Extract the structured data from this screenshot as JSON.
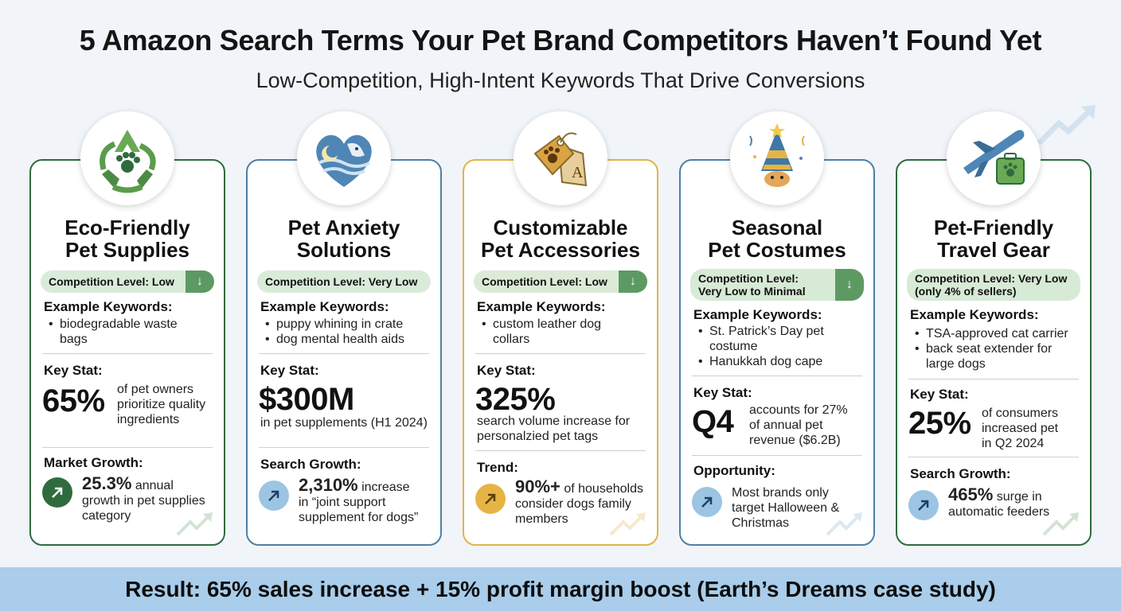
{
  "header": {
    "title": "5 Amazon Search Terms Your Pet Brand Competitors Haven’t Found Yet",
    "subtitle": "Low-Competition, High-Intent Keywords That Drive Conversions"
  },
  "colors": {
    "green": "#2f6b3e",
    "blue": "#4f7fa3",
    "gold": "#e0b44a",
    "result_bar": "#a9cdea"
  },
  "cards": [
    {
      "icon": "recycle-paw-icon",
      "title_1": "Eco-Friendly",
      "title_2": "Pet Supplies",
      "competition": "Competition Level: Low",
      "keywords_label": "Example Keywords:",
      "keywords": [
        "biodegradable waste",
        "bags"
      ],
      "stat_label": "Key Stat:",
      "stat_value": "65%",
      "stat_text": [
        "of pet owners",
        "prioritize quality",
        "ingredients"
      ],
      "growth_label": "Market Growth:",
      "growth_value": "25.3%",
      "growth_text_1": " annual",
      "growth_text_2": "growth in pet supplies",
      "growth_text_3": "category"
    },
    {
      "icon": "heart-dog-icon",
      "title_1": "Pet Anxiety",
      "title_2": "Solutions",
      "competition": "Competition Level: Very Low",
      "keywords_label": "Example Keywords:",
      "keywords": [
        "puppy whining in crate",
        "dog mental health aids"
      ],
      "stat_label": "Key Stat:",
      "stat_value": "$300M",
      "stat_text": [
        "in pet supplements (H1 2024)"
      ],
      "growth_label": "Search Growth:",
      "growth_value": "2,310%",
      "growth_text_1": " increase",
      "growth_text_2": "in “joint support",
      "growth_text_3": "supplement for dogs”"
    },
    {
      "icon": "paw-tag-icon",
      "title_1": "Customizable",
      "title_2": "Pet Accessories",
      "competition": "Competition Level: Low",
      "keywords_label": "Example Keywords:",
      "keywords": [
        "custom leather dog",
        "collars"
      ],
      "stat_label": "Key Stat:",
      "stat_value": "325%",
      "stat_text": [
        "search volume increase for",
        "personalzied pet tags"
      ],
      "growth_label": "Trend:",
      "growth_value": "90%+",
      "growth_text_1": " of households",
      "growth_text_2": "consider dogs family",
      "growth_text_3": "members"
    },
    {
      "icon": "party-hat-dog-icon",
      "title_1": "Seasonal",
      "title_2": "Pet Costumes",
      "competition_1": "Competition Level:",
      "competition_2": "Very Low to Minimal",
      "keywords_label": "Example Keywords:",
      "keywords": [
        "St. Patrick’s Day pet",
        "costume",
        "Hanukkah dog cape"
      ],
      "stat_label": "Key Stat:",
      "stat_value": "Q4",
      "stat_text": [
        "accounts for 27%",
        "of annual pet",
        "revenue ($6.2B)"
      ],
      "growth_label": "Opportunity:",
      "growth_text_1": "Most brands only",
      "growth_text_2": "target Halloween &",
      "growth_text_3": "Christmas"
    },
    {
      "icon": "airplane-suitcase-icon",
      "title_1": "Pet-Friendly",
      "title_2": "Travel Gear",
      "competition_1": "Competition Level: Very Low",
      "competition_2": "(only 4% of sellers)",
      "keywords_label": "Example Keywords:",
      "keywords": [
        "TSA-approved cat carrier",
        "back seat extender for",
        "large dogs"
      ],
      "stat_label": "Key Stat:",
      "stat_value": "25%",
      "stat_text": [
        "of consumers",
        "increased pet",
        "in Q2 2024"
      ],
      "growth_label": "Search Growth:",
      "growth_value": "465%",
      "growth_text_1": " surge in",
      "growth_text_2": "automatic feeders"
    }
  ],
  "result": "Result: 65% sales increase + 15% profit margin boost (Earth’s Dreams case study)"
}
